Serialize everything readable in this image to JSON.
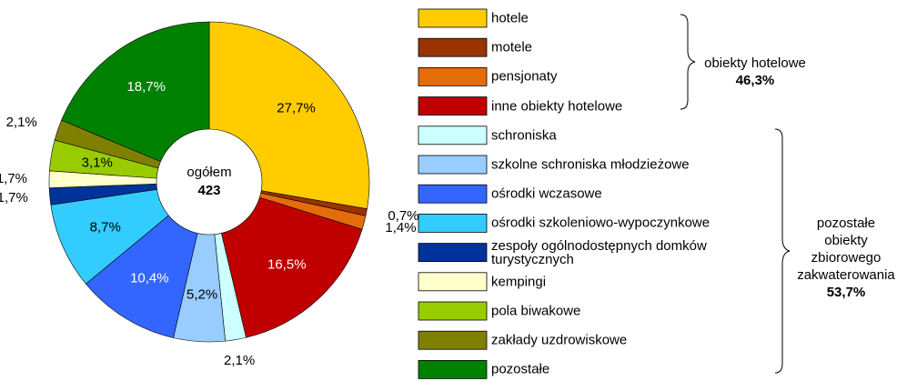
{
  "chart_data": {
    "type": "donut",
    "categories": [
      "hotele",
      "motele",
      "pensjonaty",
      "inne obiekty hotelowe",
      "schroniska",
      "szkolne schroniska młodzieżowe",
      "ośrodki wczasowe",
      "ośrodki szkoleniowo-wypoczynkowe",
      "zespoły ogólnodostępnych domków turystycznych",
      "kempingi",
      "pola biwakowe",
      "zakłady uzdrowiskowe",
      "pozostałe"
    ],
    "values": [
      27.7,
      0.7,
      1.4,
      16.5,
      2.1,
      5.2,
      10.4,
      8.7,
      1.7,
      1.7,
      3.1,
      2.1,
      18.7
    ],
    "value_labels": [
      "27,7%",
      "0,7%",
      "1,4%",
      "16,5%",
      "2,1%",
      "5,2%",
      "10,4%",
      "8,7%",
      "1,7%",
      "1,7%",
      "3,1%",
      "2,1%",
      "18,7%"
    ],
    "colors": [
      "#ffcc00",
      "#993300",
      "#e46c0a",
      "#c00000",
      "#ccffff",
      "#99ccff",
      "#3366ff",
      "#33ccff",
      "#003399",
      "#ffffcc",
      "#99cc00",
      "#808000",
      "#008000"
    ],
    "center_label": "ogółem",
    "total": 423,
    "groups": [
      {
        "label_lines": [
          "obiekty hotelowe"
        ],
        "total_label": "46,3%"
      },
      {
        "label_lines": [
          "pozostałe",
          "obiekty",
          "zbiorowego",
          "zakwaterowania"
        ],
        "total_label": "53,7%"
      }
    ]
  }
}
